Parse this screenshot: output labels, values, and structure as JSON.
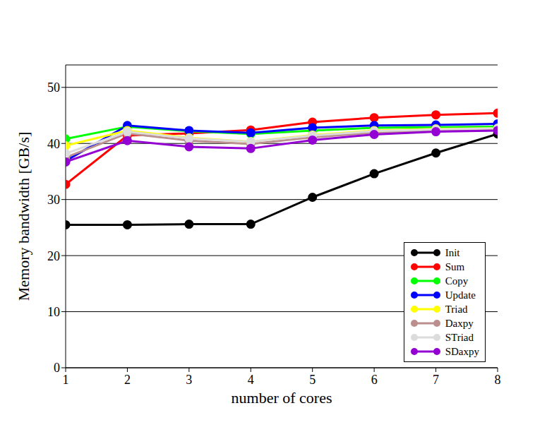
{
  "chart_data": {
    "type": "line",
    "x_label": "number of cores",
    "y_label": "Memory bandwidth [GB/s]",
    "x": [
      1,
      2,
      3,
      4,
      5,
      6,
      7,
      8
    ],
    "xlim": [
      1,
      8
    ],
    "xticks": [
      1,
      2,
      3,
      4,
      5,
      6,
      7,
      8
    ],
    "ylim": [
      0,
      54
    ],
    "yticks": [
      0,
      10,
      20,
      30,
      40,
      50
    ],
    "grid": true,
    "legend": "lower right",
    "marker": "circle",
    "series": [
      {
        "name": "Init",
        "color": "#000000",
        "values": [
          25.5,
          25.5,
          25.6,
          25.6,
          30.4,
          34.6,
          38.3,
          41.7
        ]
      },
      {
        "name": "Sum",
        "color": "#ff0000",
        "values": [
          32.7,
          41.4,
          41.8,
          42.4,
          43.8,
          44.6,
          45.1,
          45.4
        ]
      },
      {
        "name": "Copy",
        "color": "#00ff00",
        "values": [
          40.8,
          43.0,
          42.2,
          41.7,
          42.3,
          42.8,
          42.9,
          43.0
        ]
      },
      {
        "name": "Update",
        "color": "#0000ff",
        "values": [
          36.9,
          43.2,
          42.3,
          41.9,
          42.8,
          43.2,
          43.3,
          43.5
        ]
      },
      {
        "name": "Triad",
        "color": "#ffff00",
        "values": [
          39.6,
          42.3,
          41.0,
          40.3,
          41.5,
          42.3,
          42.6,
          42.7
        ]
      },
      {
        "name": "Daxpy",
        "color": "#bc8f8f",
        "values": [
          37.5,
          41.8,
          40.5,
          39.9,
          41.1,
          41.9,
          42.3,
          42.5
        ]
      },
      {
        "name": "STriad",
        "color": "#dcdcdc",
        "values": [
          38.2,
          42.1,
          40.9,
          40.3,
          41.4,
          42.2,
          42.5,
          42.7
        ]
      },
      {
        "name": "SDaxpy",
        "color": "#9400d3",
        "values": [
          36.7,
          40.5,
          39.4,
          39.1,
          40.6,
          41.6,
          42.1,
          42.3
        ]
      }
    ]
  }
}
